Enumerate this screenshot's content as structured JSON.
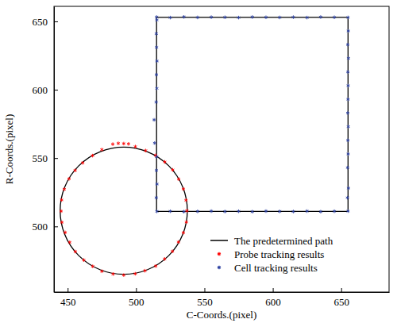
{
  "chart_data": {
    "type": "scatter",
    "x_label": "C-Coords.(pixel)",
    "y_label": "R-Coords.(pixel)",
    "xlim": [
      440,
      685
    ],
    "ylim": [
      452,
      661
    ],
    "xticks": [
      450,
      500,
      550,
      600,
      650
    ],
    "yticks": [
      500,
      550,
      600,
      650
    ],
    "grid": false,
    "legend": "lower right",
    "series": [
      {
        "name": "The predetermined path",
        "color": "#000000",
        "type": "line",
        "line_style": "solid",
        "circle": {
          "cx": 491,
          "cy": 511.5,
          "r": 46.5
        },
        "x": [
          515,
          515,
          655,
          655,
          515
        ],
        "values": [
          511,
          653,
          653,
          511,
          511
        ]
      },
      {
        "name": "Probe tracking results",
        "color": "#ff0000",
        "type": "scatter",
        "marker": "asterisk",
        "x": [
          537.2,
          536.5,
          534.6,
          531.2,
          526.8,
          521.0,
          514.3,
          507.0,
          499.5,
          491.0,
          483.0,
          475.0,
          468.2,
          461.0,
          455.5,
          451.0,
          447.5,
          445.6,
          445.2,
          445.8,
          448.2,
          451.5,
          455.6,
          461.8,
          468.3,
          475.0,
          483.2,
          491.0,
          499.4,
          506.5,
          514.4,
          520.9,
          526.6,
          531.0,
          534.6,
          536.8,
          487.0,
          494.5
        ],
        "values": [
          511.5,
          519.2,
          527.4,
          534.6,
          541.4,
          547.2,
          552.0,
          555.5,
          558.4,
          560.6,
          560.2,
          556.2,
          551.8,
          546.5,
          541.0,
          534.8,
          527.2,
          519.4,
          511.2,
          503.0,
          495.6,
          488.4,
          481.6,
          475.4,
          470.8,
          467.2,
          465.2,
          464.4,
          465.4,
          467.6,
          471.0,
          476.2,
          481.8,
          488.6,
          495.4,
          503.2,
          560.8,
          560.4
        ]
      },
      {
        "name": "Cell tracking results",
        "color": "#2b3fa0",
        "type": "scatter",
        "marker": "asterisk",
        "x": [
          515.2,
          514.8,
          515.3,
          514.9,
          515.1,
          513.6,
          513.2,
          514.7,
          515.2,
          514.9,
          515.3,
          515.0,
          514.8,
          515.2,
          515.0,
          525,
          535,
          545,
          555,
          565,
          575,
          585,
          595,
          605,
          615,
          625,
          635,
          645,
          655,
          655.2,
          654.8,
          655.3,
          654.9,
          655.1,
          655.0,
          654.8,
          655.2,
          654.9,
          655.1,
          654.7,
          655.3,
          654.6,
          655.0,
          645,
          635,
          625,
          615,
          605,
          595,
          585,
          575,
          565,
          555,
          545,
          535,
          525
        ],
        "values": [
          511,
          521,
          531,
          541,
          551,
          561,
          578,
          591,
          601,
          611,
          621,
          631,
          641,
          651,
          653.2,
          652.8,
          653.3,
          652.9,
          653.1,
          653.0,
          652.8,
          653.2,
          653.0,
          652.9,
          653.1,
          652.8,
          653.2,
          653.0,
          652.9,
          643,
          633,
          623,
          613,
          603,
          593,
          583,
          573,
          563,
          553,
          543,
          528,
          521,
          511.2,
          511.1,
          510.8,
          511.2,
          510.9,
          511.0,
          511.2,
          510.8,
          511.1,
          510.9,
          511.2,
          511.0,
          510.8,
          511.1
        ]
      }
    ]
  }
}
